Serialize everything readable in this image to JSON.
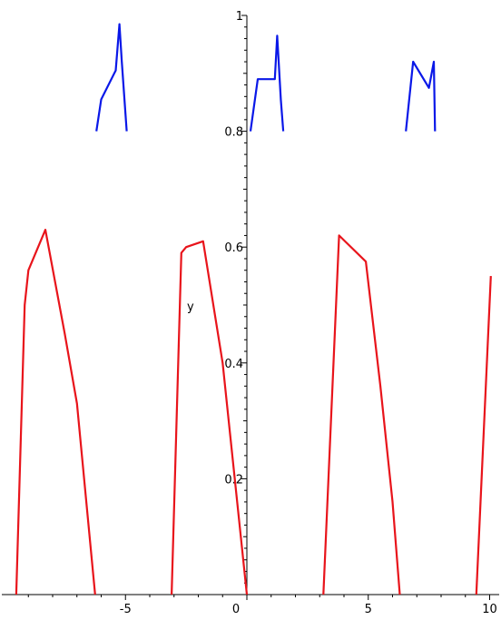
{
  "chart_data": {
    "type": "line",
    "title": "",
    "xlabel": "",
    "ylabel": "y",
    "xlim": [
      -9.6,
      10.2
    ],
    "ylim": [
      0,
      1.0
    ],
    "grid": false,
    "legend": "none",
    "x_ticks": [
      {
        "value": -5,
        "label": "-5"
      },
      {
        "value": 0,
        "label": "0"
      },
      {
        "value": 5,
        "label": "5"
      },
      {
        "value": 10,
        "label": "10"
      }
    ],
    "y_ticks": [
      {
        "value": 0,
        "label": "0"
      },
      {
        "value": 0.2,
        "label": "0.2"
      },
      {
        "value": 0.4,
        "label": "0.4"
      },
      {
        "value": 0.6,
        "label": "0.6"
      },
      {
        "value": 0.8,
        "label": "0.8"
      },
      {
        "value": 1.0,
        "label": "1"
      }
    ],
    "series": [
      {
        "color": "#e8141b",
        "segments": [
          [
            [
              -9.5,
              0.0
            ],
            [
              -9.15,
              0.5
            ],
            [
              -9.0,
              0.56
            ],
            [
              -8.3,
              0.63
            ],
            [
              -7.5,
              0.45
            ],
            [
              -7.0,
              0.33
            ],
            [
              -6.25,
              0.0
            ]
          ],
          [
            [
              -3.1,
              0.0
            ],
            [
              -2.7,
              0.59
            ],
            [
              -2.5,
              0.6
            ],
            [
              -1.8,
              0.61
            ],
            [
              -1.0,
              0.4
            ],
            [
              0.0,
              0.0
            ]
          ],
          [
            [
              3.15,
              0.0
            ],
            [
              3.8,
              0.62
            ],
            [
              4.9,
              0.575
            ],
            [
              5.5,
              0.36
            ],
            [
              6.0,
              0.16
            ],
            [
              6.3,
              0.0
            ]
          ],
          [
            [
              9.45,
              0.0
            ],
            [
              10.05,
              0.55
            ]
          ]
        ]
      },
      {
        "color": "#0a18e8",
        "segments": [
          [
            [
              -6.2,
              0.8
            ],
            [
              -6.0,
              0.855
            ],
            [
              -5.4,
              0.905
            ],
            [
              -5.25,
              0.985
            ],
            [
              -5.15,
              0.92
            ],
            [
              -4.95,
              0.8
            ]
          ],
          [
            [
              0.15,
              0.8
            ],
            [
              0.45,
              0.89
            ],
            [
              1.15,
              0.89
            ],
            [
              1.25,
              0.965
            ],
            [
              1.4,
              0.855
            ],
            [
              1.5,
              0.8
            ]
          ],
          [
            [
              6.55,
              0.8
            ],
            [
              6.85,
              0.92
            ],
            [
              7.5,
              0.875
            ],
            [
              7.7,
              0.92
            ],
            [
              7.75,
              0.8
            ]
          ]
        ]
      }
    ]
  }
}
